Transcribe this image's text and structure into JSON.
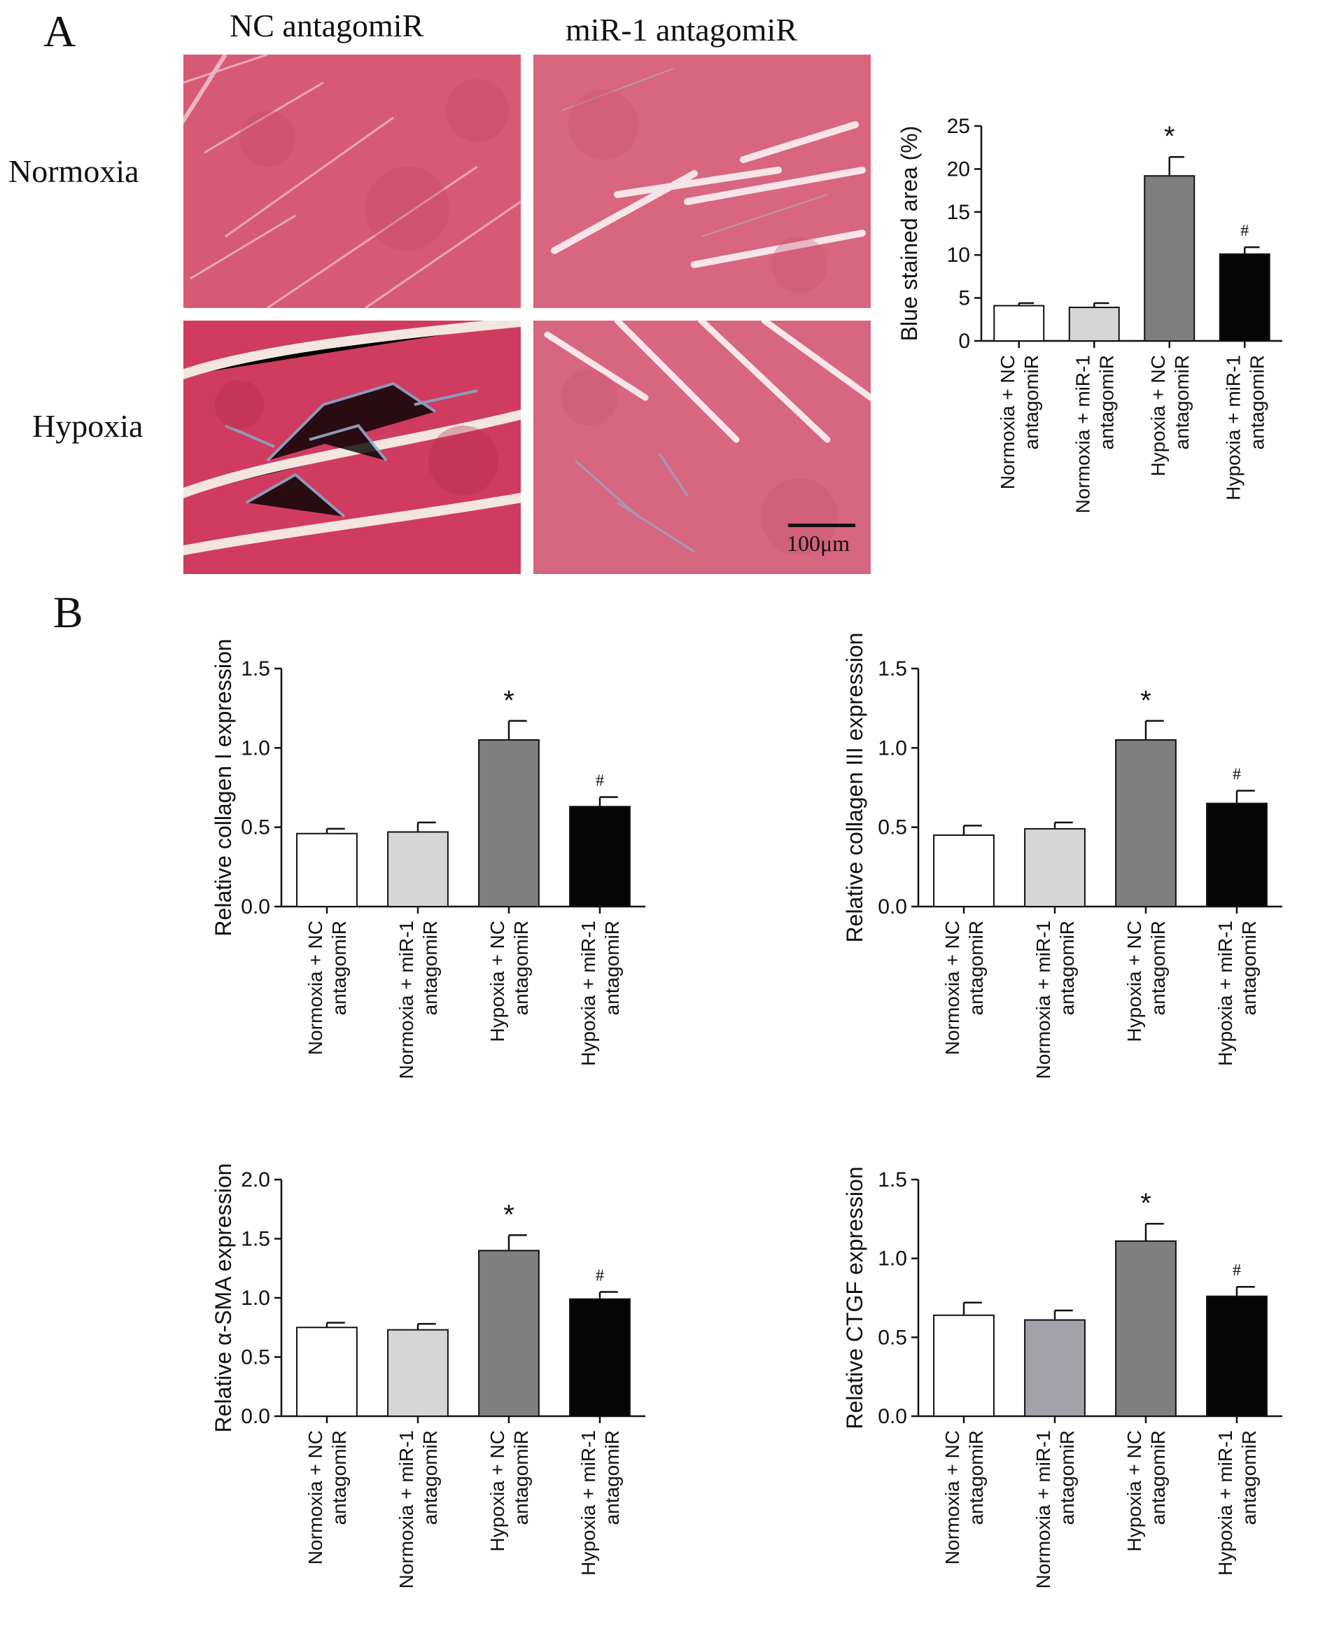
{
  "panel_a": {
    "letter": "A",
    "columns": [
      "NC antagomiR",
      "miR-1 antagomiR"
    ],
    "rows": [
      "Normoxia",
      "Hypoxia"
    ],
    "scale_bar": "100μm"
  },
  "panel_b": {
    "letter": "B"
  },
  "colors": {
    "white": "#ffffff",
    "light_gray": "#d6d6d6",
    "dark_gray": "#7f7f7f",
    "black": "#050505",
    "ctgf_light": "#a2a2a8"
  },
  "chart_data": [
    {
      "type": "bar",
      "panel": "A",
      "ylabel": "Blue stained area (%)",
      "ylim": [
        0,
        25
      ],
      "yticks": [
        0,
        5,
        10,
        15,
        20,
        25
      ],
      "categories": [
        "Normoxia + NC\nantagomiR",
        "Normoxia + miR-1\nantagomiR",
        "Hypoxia + NC\nantagomiR",
        "Hypoxia + miR-1\nantagomiR"
      ],
      "values": [
        4.1,
        3.9,
        19.2,
        10.1
      ],
      "errors": [
        0.3,
        0.5,
        2.2,
        0.8
      ],
      "annotations": [
        "",
        "",
        "*",
        "#"
      ],
      "colors": [
        "#ffffff",
        "#d6d6d6",
        "#7f7f7f",
        "#050505"
      ]
    },
    {
      "type": "bar",
      "panel": "B",
      "ylabel": "Relative collagen I expression",
      "ylim": [
        0,
        1.5
      ],
      "yticks": [
        "0.0",
        "0.5",
        "1.0",
        "1.5"
      ],
      "categories": [
        "Normoxia + NC\nantagomiR",
        "Normoxia + miR-1\nantagomiR",
        "Hypoxia + NC\nantagomiR",
        "Hypoxia + miR-1\nantagomiR"
      ],
      "values": [
        0.46,
        0.47,
        1.05,
        0.63
      ],
      "errors": [
        0.03,
        0.06,
        0.12,
        0.06
      ],
      "annotations": [
        "",
        "",
        "*",
        "#"
      ],
      "colors": [
        "#ffffff",
        "#d6d6d6",
        "#7f7f7f",
        "#050505"
      ]
    },
    {
      "type": "bar",
      "panel": "B",
      "ylabel": "Relative collagen III expression",
      "ylim": [
        0,
        1.5
      ],
      "yticks": [
        "0.0",
        "0.5",
        "1.0",
        "1.5"
      ],
      "categories": [
        "Normoxia + NC\nantagomiR",
        "Normoxia + miR-1\nantagomiR",
        "Hypoxia + NC\nantagomiR",
        "Hypoxia + miR-1\nantagomiR"
      ],
      "values": [
        0.45,
        0.49,
        1.05,
        0.65
      ],
      "errors": [
        0.06,
        0.04,
        0.12,
        0.08
      ],
      "annotations": [
        "",
        "",
        "*",
        "#"
      ],
      "colors": [
        "#ffffff",
        "#d6d6d6",
        "#7f7f7f",
        "#050505"
      ]
    },
    {
      "type": "bar",
      "panel": "B",
      "ylabel": "Relative α-SMA expression",
      "ylim": [
        0,
        2.0
      ],
      "yticks": [
        "0.0",
        "0.5",
        "1.0",
        "1.5",
        "2.0"
      ],
      "categories": [
        "Normoxia + NC\nantagomiR",
        "Normoxia + miR-1\nantagomiR",
        "Hypoxia + NC\nantagomiR",
        "Hypoxia + miR-1\nantagomiR"
      ],
      "values": [
        0.75,
        0.73,
        1.4,
        0.99
      ],
      "errors": [
        0.04,
        0.05,
        0.13,
        0.06
      ],
      "annotations": [
        "",
        "",
        "*",
        "#"
      ],
      "colors": [
        "#ffffff",
        "#d6d6d6",
        "#7f7f7f",
        "#050505"
      ]
    },
    {
      "type": "bar",
      "panel": "B",
      "ylabel": "Relative CTGF expression",
      "ylim": [
        0,
        1.5
      ],
      "yticks": [
        "0.0",
        "0.5",
        "1.0",
        "1.5"
      ],
      "categories": [
        "Normoxia + NC\nantagomiR",
        "Normoxia + miR-1\nantagomiR",
        "Hypoxia + NC\nantagomiR",
        "Hypoxia + miR-1\nantagomiR"
      ],
      "values": [
        0.64,
        0.61,
        1.11,
        0.76
      ],
      "errors": [
        0.08,
        0.06,
        0.11,
        0.06
      ],
      "annotations": [
        "",
        "",
        "*",
        "#"
      ],
      "colors": [
        "#ffffff",
        "#a2a2a8",
        "#7f7f7f",
        "#050505"
      ]
    }
  ]
}
